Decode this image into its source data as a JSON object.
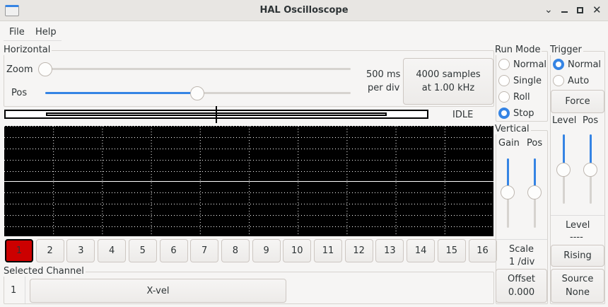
{
  "window": {
    "title": "HAL Oscilloscope",
    "controls": [
      "minimize",
      "restore",
      "maximize",
      "close"
    ]
  },
  "menu": [
    "File",
    "Help"
  ],
  "horizontal": {
    "label": "Horizontal",
    "zoom_label": "Zoom",
    "pos_label": "Pos",
    "zoom_value": 0,
    "pos_value": 0.49,
    "rate_line1": "500 ms",
    "rate_line2": "per div",
    "samples_line1": "4000 samples",
    "samples_line2": "at 1.00 kHz",
    "status": "IDLE"
  },
  "run_mode": {
    "label": "Run Mode",
    "options": [
      "Normal",
      "Single",
      "Roll",
      "Stop"
    ],
    "selected": "Stop"
  },
  "trigger": {
    "label": "Trigger",
    "options": [
      "Normal",
      "Auto"
    ],
    "selected": "Normal",
    "force": "Force",
    "level_label": "Level",
    "pos_label": "Pos",
    "level_value": "Level",
    "level_readout": "----",
    "edge": "Rising",
    "source_line1": "Source",
    "source_line2": "None"
  },
  "vertical": {
    "label": "Vertical",
    "gain_label": "Gain",
    "pos_label": "Pos",
    "scale_line1": "Scale",
    "scale_line2": "1 /div",
    "offset_line1": "Offset",
    "offset_line2": "0.000"
  },
  "channels": [
    "1",
    "2",
    "3",
    "4",
    "5",
    "6",
    "7",
    "8",
    "9",
    "10",
    "11",
    "12",
    "13",
    "14",
    "15",
    "16"
  ],
  "selected_channel": {
    "label": "Selected Channel",
    "number": "1",
    "name": "X-vel"
  },
  "colors": {
    "accent": "#3584e4",
    "active_channel": "#cc0000",
    "scope_bg": "#000000"
  }
}
